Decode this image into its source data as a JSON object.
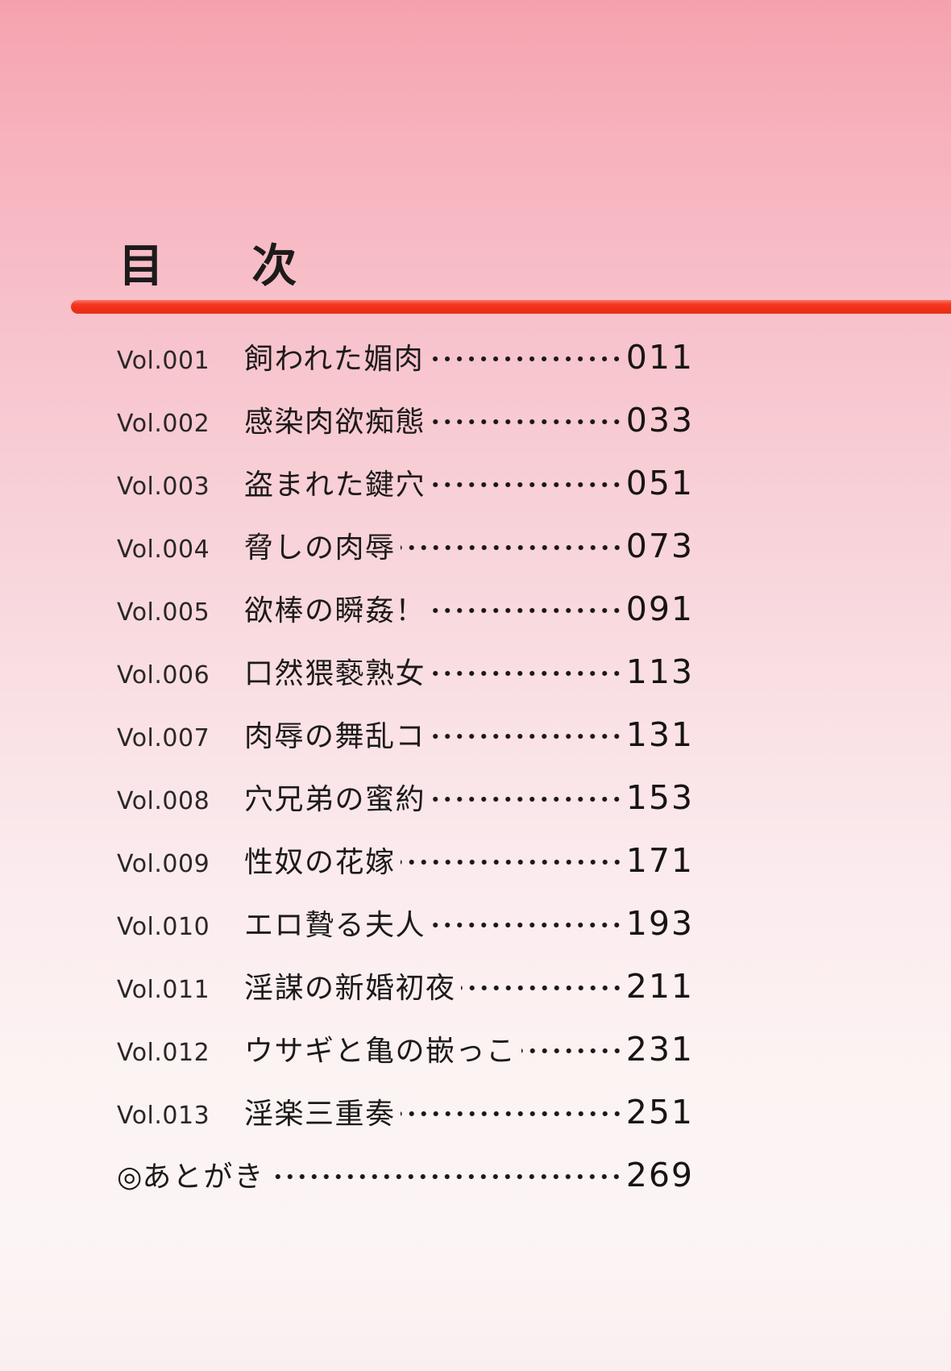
{
  "page": {
    "title": "目次"
  },
  "toc": {
    "entries": [
      {
        "vol": "Vol.001",
        "title": "飼われた媚肉",
        "page": "011"
      },
      {
        "vol": "Vol.002",
        "title": "感染肉欲痴態",
        "page": "033"
      },
      {
        "vol": "Vol.003",
        "title": "盗まれた鍵穴",
        "page": "051"
      },
      {
        "vol": "Vol.004",
        "title": "脅しの肉辱",
        "page": "073"
      },
      {
        "vol": "Vol.005",
        "title": "欲棒の瞬姦！",
        "page": "091"
      },
      {
        "vol": "Vol.006",
        "title": "口然猥褻熟女",
        "page": "113"
      },
      {
        "vol": "Vol.007",
        "title": "肉辱の舞乱コ",
        "page": "131"
      },
      {
        "vol": "Vol.008",
        "title": "穴兄弟の蜜約",
        "page": "153"
      },
      {
        "vol": "Vol.009",
        "title": "性奴の花嫁",
        "page": "171"
      },
      {
        "vol": "Vol.010",
        "title": "エロ贄る夫人",
        "page": "193"
      },
      {
        "vol": "Vol.011",
        "title": "淫謀の新婚初夜",
        "page": "211"
      },
      {
        "vol": "Vol.012",
        "title": "ウサギと亀の嵌っこ",
        "page": "231"
      },
      {
        "vol": "Vol.013",
        "title": "淫楽三重奏",
        "page": "251"
      }
    ],
    "afterword": {
      "marker": "◎",
      "label": "あとがき",
      "page": "269"
    }
  },
  "colors": {
    "accent_bar": "#f22c13",
    "background_top": "#f5a2ae",
    "background_bottom": "#faeff0",
    "text": "#1c1c1c"
  }
}
